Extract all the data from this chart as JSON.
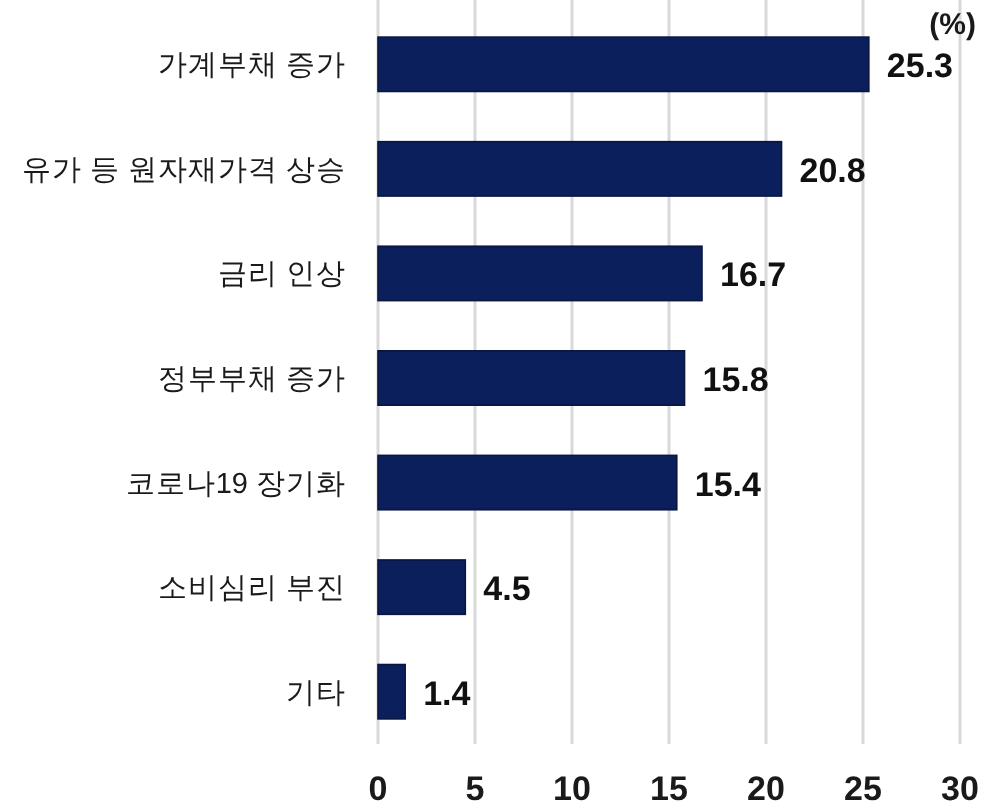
{
  "chart_data": {
    "type": "bar",
    "orientation": "horizontal",
    "categories": [
      "가계부채 증가",
      "유가 등 원자재가격 상승",
      "금리 인상",
      "정부부채 증가",
      "코로나19 장기화",
      "소비심리 부진",
      "기타"
    ],
    "values": [
      25.3,
      20.8,
      16.7,
      15.8,
      15.4,
      4.5,
      1.4
    ],
    "color": "#0b1f5c",
    "xlim": [
      0,
      30
    ],
    "xticks": [
      0,
      5,
      10,
      15,
      20,
      25,
      30
    ],
    "xlabel": "(%)",
    "grid": "x",
    "data_labels": true
  }
}
